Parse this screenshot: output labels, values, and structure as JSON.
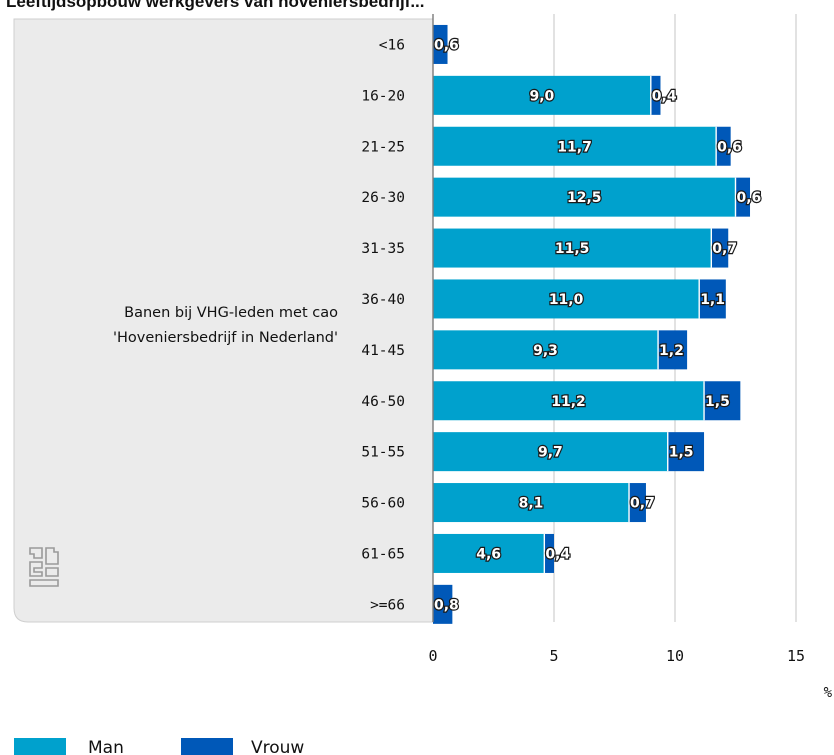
{
  "header": {
    "title": "Leeftijdsopbouw werkgevers van hoveniersbedrijf..."
  },
  "colors": {
    "man": "#00a1cd",
    "vrouw": "#0058b8",
    "panel": "#ebebeb",
    "grid": "#cfcfcf"
  },
  "icons": {
    "logo": "cbs-logo"
  },
  "chart_data": {
    "type": "bar",
    "orientation": "horizontal",
    "stacked": true,
    "group_label_lines": [
      "Banen bij VHG-leden met cao",
      "'Hoveniersbedrijf in Nederland'"
    ],
    "categories": [
      "<16",
      "16-20",
      "21-25",
      "26-30",
      "31-35",
      "36-40",
      "41-45",
      "46-50",
      "51-55",
      "56-60",
      "61-65",
      ">=66"
    ],
    "series": [
      {
        "name": "Man",
        "values": [
          0,
          9.0,
          11.7,
          12.5,
          11.5,
          11.0,
          9.3,
          11.2,
          9.7,
          8.1,
          4.6,
          0
        ],
        "labels": [
          "",
          "9,0",
          "11,7",
          "12,5",
          "11,5",
          "11,0",
          "9,3",
          "11,2",
          "9,7",
          "8,1",
          "4,6",
          ""
        ]
      },
      {
        "name": "Vrouw",
        "values": [
          0.6,
          0.4,
          0.6,
          0.6,
          0.7,
          1.1,
          1.2,
          1.5,
          1.5,
          0.7,
          0.4,
          0.8
        ],
        "labels": [
          "0,6",
          "0,4",
          "0,6",
          "0,6",
          "0,7",
          "1,1",
          "1,2",
          "1,5",
          "1,5",
          "0,7",
          "0,4",
          "0,8"
        ]
      }
    ],
    "xlim": [
      0,
      15
    ],
    "xticks": [
      0,
      5,
      10,
      15
    ],
    "xunit": "%",
    "grid": true,
    "legend_position": "bottom-left"
  }
}
